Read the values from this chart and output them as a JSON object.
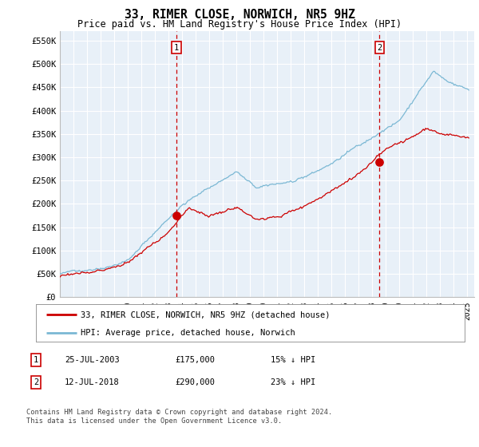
{
  "title": "33, RIMER CLOSE, NORWICH, NR5 9HZ",
  "subtitle": "Price paid vs. HM Land Registry's House Price Index (HPI)",
  "ylabel_ticks": [
    "£0",
    "£50K",
    "£100K",
    "£150K",
    "£200K",
    "£250K",
    "£300K",
    "£350K",
    "£400K",
    "£450K",
    "£500K",
    "£550K"
  ],
  "ylim": [
    0,
    570000
  ],
  "ytick_values": [
    0,
    50000,
    100000,
    150000,
    200000,
    250000,
    300000,
    350000,
    400000,
    450000,
    500000,
    550000
  ],
  "purchase1_price": 175000,
  "purchase1_label": "1",
  "purchase1_x": 2003.57,
  "purchase2_price": 290000,
  "purchase2_label": "2",
  "purchase2_x": 2018.53,
  "legend_line1": "33, RIMER CLOSE, NORWICH, NR5 9HZ (detached house)",
  "legend_line2": "HPI: Average price, detached house, Norwich",
  "table_row1": [
    "1",
    "25-JUL-2003",
    "£175,000",
    "15% ↓ HPI"
  ],
  "table_row2": [
    "2",
    "12-JUL-2018",
    "£290,000",
    "23% ↓ HPI"
  ],
  "footnote": "Contains HM Land Registry data © Crown copyright and database right 2024.\nThis data is licensed under the Open Government Licence v3.0.",
  "hpi_color": "#7bb8d4",
  "price_color": "#cc0000",
  "vline_color": "#cc0000",
  "background_color": "#ffffff",
  "plot_bg_color": "#e8f0f8",
  "grid_color": "#ffffff",
  "xlim_start": 1995.0,
  "xlim_end": 2025.5
}
